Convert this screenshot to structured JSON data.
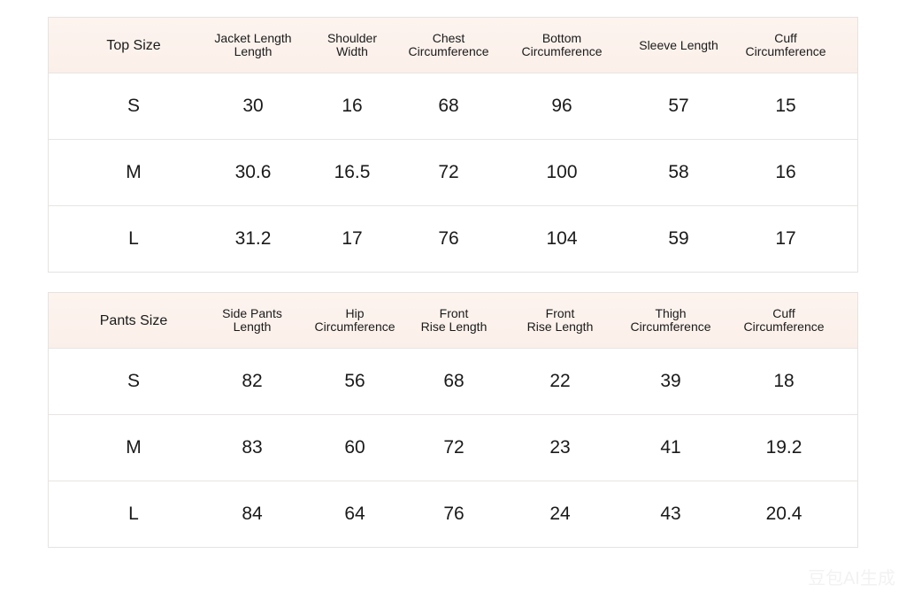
{
  "tables": [
    {
      "header": [
        "Top Size",
        "Jacket Length\nLength",
        "Shoulder\nWidth",
        "Chest\nCircumference",
        "Bottom\nCircumference",
        "Sleeve Length",
        "Cuff\nCircumference"
      ],
      "rows": [
        [
          "S",
          "30",
          "16",
          "68",
          "96",
          "57",
          "15"
        ],
        [
          "M",
          "30.6",
          "16.5",
          "72",
          "100",
          "58",
          "16"
        ],
        [
          "L",
          "31.2",
          "17",
          "76",
          "104",
          "59",
          "17"
        ]
      ]
    },
    {
      "header": [
        "Pants Size",
        "Side Pants\nLength",
        "Hip\nCircumference",
        "Front\nRise Length",
        "Front\nRise Length",
        "Thigh\nCircumference",
        "Cuff\nCircumference"
      ],
      "rows": [
        [
          "S",
          "82",
          "56",
          "68",
          "22",
          "39",
          "18"
        ],
        [
          "M",
          "83",
          "60",
          "72",
          "23",
          "41",
          "19.2"
        ],
        [
          "L",
          "84",
          "64",
          "76",
          "24",
          "43",
          "20.4"
        ]
      ]
    }
  ],
  "watermark": "豆包AI生成"
}
